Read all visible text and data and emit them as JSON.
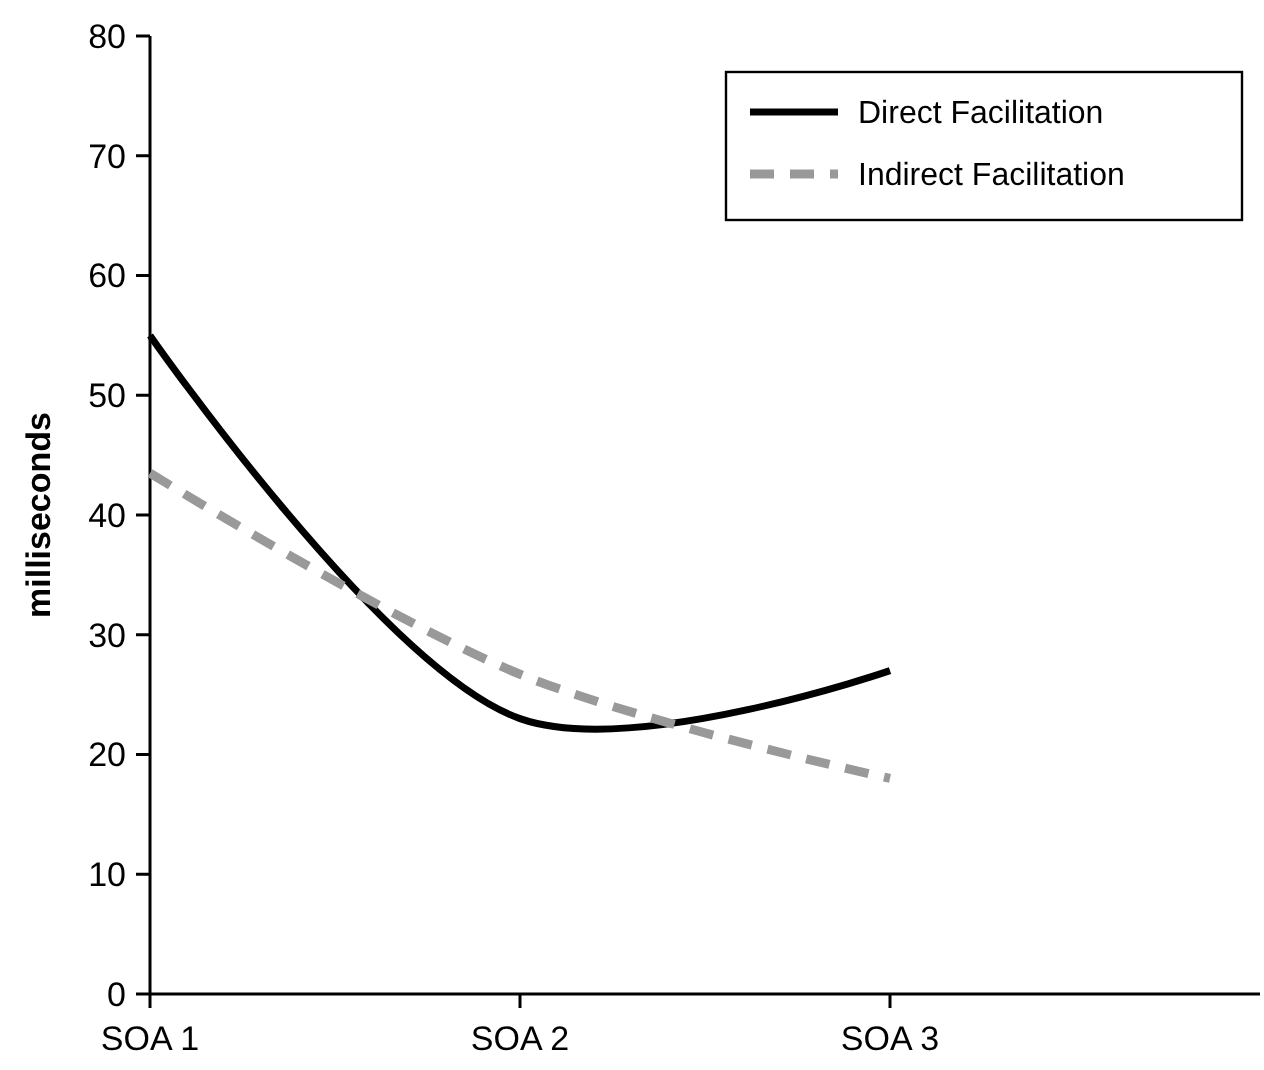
{
  "chart_data": {
    "type": "line",
    "ylabel": "milliseconds",
    "categories": [
      "SOA 1",
      "SOA 2",
      "SOA 3",
      null
    ],
    "ylim": [
      0,
      80
    ],
    "yticks": [
      0,
      10,
      20,
      30,
      40,
      50,
      60,
      70,
      80
    ],
    "grid": false,
    "legend": "top right",
    "marker": "none",
    "series": [
      {
        "name": "Direct Facilitation",
        "color": "#000000",
        "line_style": "solid",
        "values": [
          55,
          23,
          27,
          null
        ]
      },
      {
        "name": "Indirect Facilitation",
        "color": "#999999",
        "line_style": "dashed",
        "values": [
          43.5,
          26.7,
          18,
          null
        ]
      }
    ]
  }
}
